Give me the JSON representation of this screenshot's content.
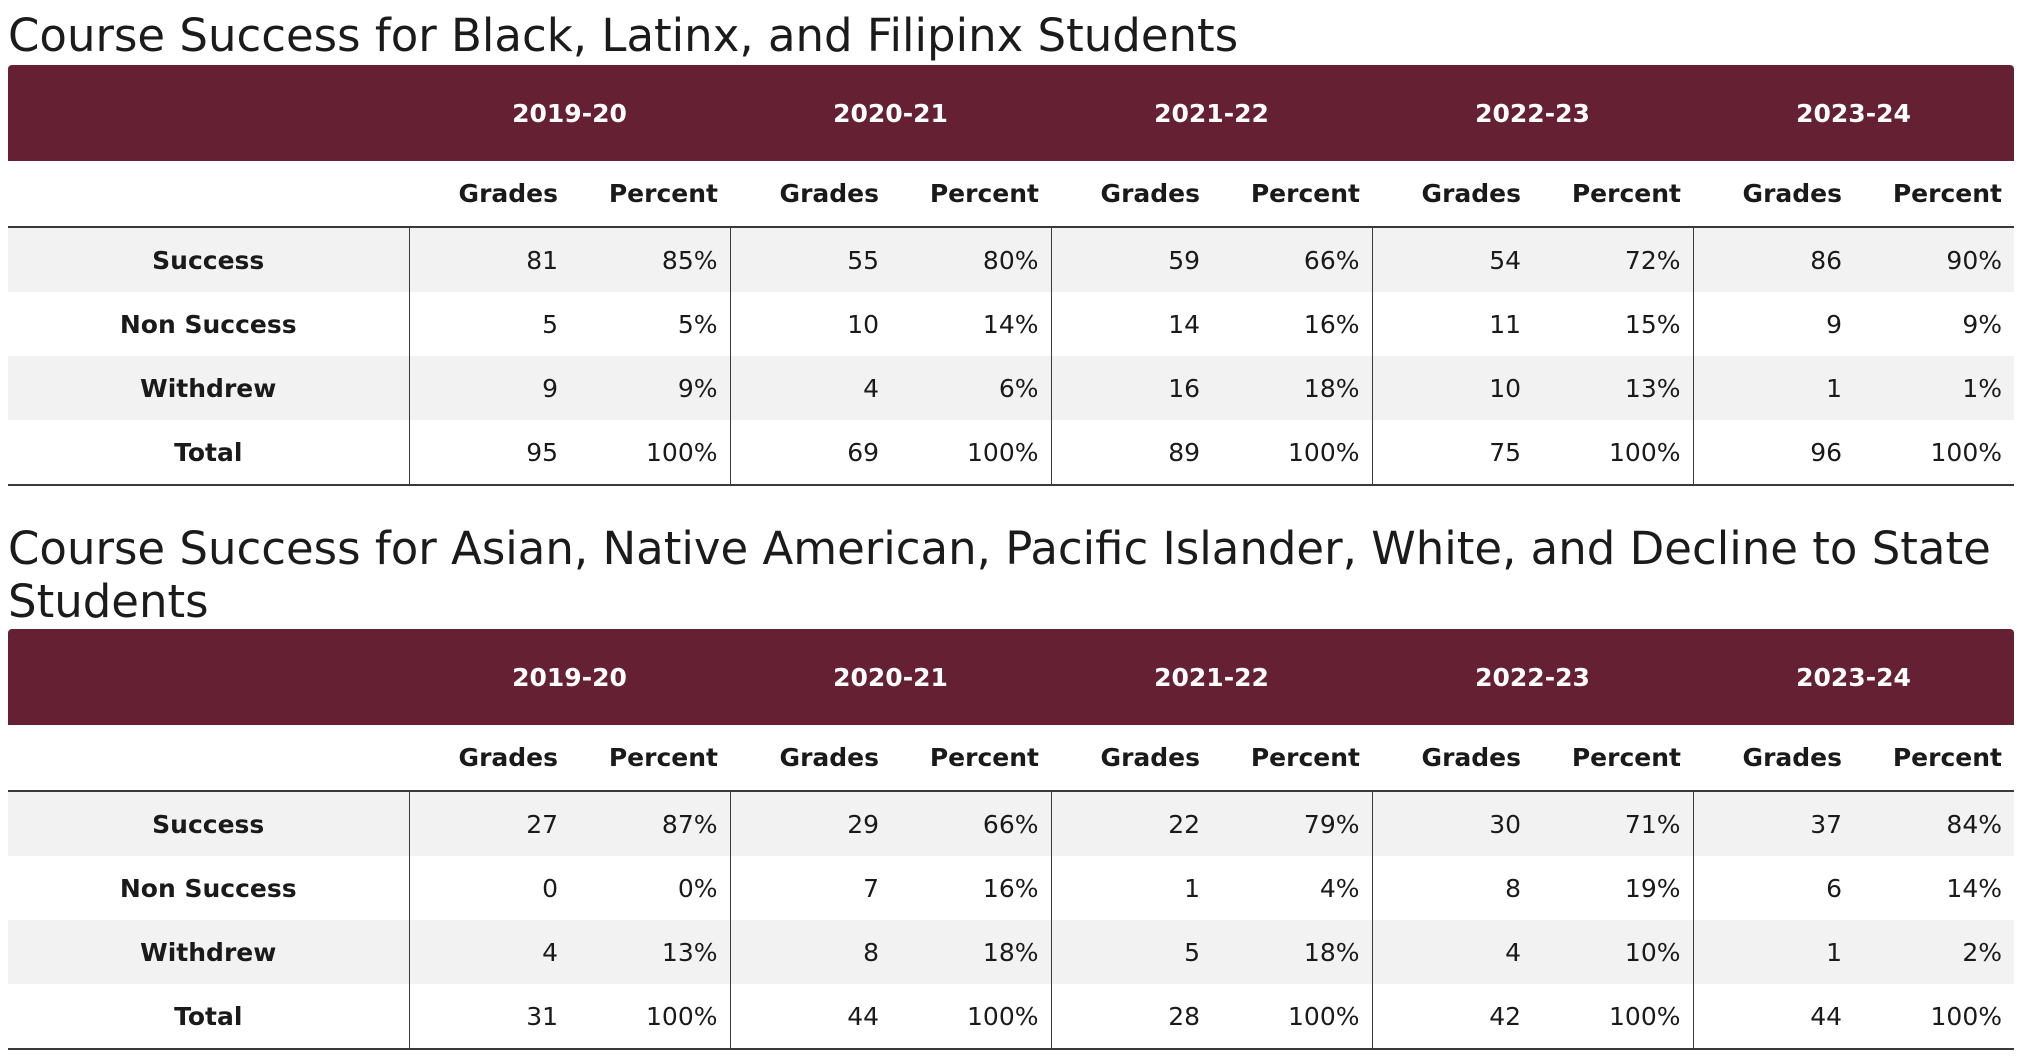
{
  "years": [
    "2019-20",
    "2020-21",
    "2021-22",
    "2022-23",
    "2023-24"
  ],
  "subheaders": {
    "grades": "Grades",
    "percent": "Percent"
  },
  "tables": [
    {
      "title": "Course Success for Black, Latinx, and Filipinx Students",
      "rows": [
        {
          "label": "Success",
          "cells": [
            [
              "81",
              "85%"
            ],
            [
              "55",
              "80%"
            ],
            [
              "59",
              "66%"
            ],
            [
              "54",
              "72%"
            ],
            [
              "86",
              "90%"
            ]
          ]
        },
        {
          "label": "Non Success",
          "cells": [
            [
              "5",
              "5%"
            ],
            [
              "10",
              "14%"
            ],
            [
              "14",
              "16%"
            ],
            [
              "11",
              "15%"
            ],
            [
              "9",
              "9%"
            ]
          ]
        },
        {
          "label": "Withdrew",
          "cells": [
            [
              "9",
              "9%"
            ],
            [
              "4",
              "6%"
            ],
            [
              "16",
              "18%"
            ],
            [
              "10",
              "13%"
            ],
            [
              "1",
              "1%"
            ]
          ]
        },
        {
          "label": "Total",
          "cells": [
            [
              "95",
              "100%"
            ],
            [
              "69",
              "100%"
            ],
            [
              "89",
              "100%"
            ],
            [
              "75",
              "100%"
            ],
            [
              "96",
              "100%"
            ]
          ]
        }
      ]
    },
    {
      "title": "Course Success for Asian, Native American, Pacific Islander, White, and Decline to State Students",
      "rows": [
        {
          "label": "Success",
          "cells": [
            [
              "27",
              "87%"
            ],
            [
              "29",
              "66%"
            ],
            [
              "22",
              "79%"
            ],
            [
              "30",
              "71%"
            ],
            [
              "37",
              "84%"
            ]
          ]
        },
        {
          "label": "Non Success",
          "cells": [
            [
              "0",
              "0%"
            ],
            [
              "7",
              "16%"
            ],
            [
              "1",
              "4%"
            ],
            [
              "8",
              "19%"
            ],
            [
              "6",
              "14%"
            ]
          ]
        },
        {
          "label": "Withdrew",
          "cells": [
            [
              "4",
              "13%"
            ],
            [
              "8",
              "18%"
            ],
            [
              "5",
              "18%"
            ],
            [
              "4",
              "10%"
            ],
            [
              "1",
              "2%"
            ]
          ]
        },
        {
          "label": "Total",
          "cells": [
            [
              "31",
              "100%"
            ],
            [
              "44",
              "100%"
            ],
            [
              "28",
              "100%"
            ],
            [
              "42",
              "100%"
            ],
            [
              "44",
              "100%"
            ]
          ]
        }
      ]
    }
  ],
  "colors": {
    "header_bg": "#652133",
    "header_text": "#ffffff",
    "stripe": "#f2f2f2"
  }
}
